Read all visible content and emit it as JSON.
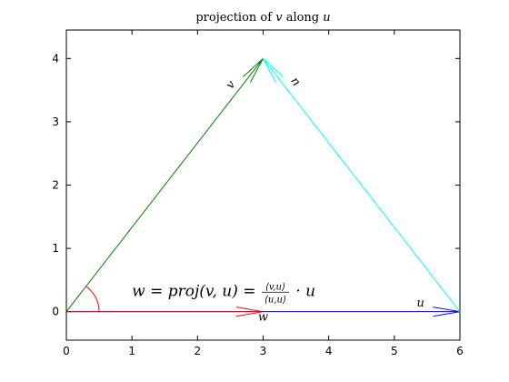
{
  "chart_data": {
    "type": "line",
    "title": {
      "parts": [
        {
          "text": "projection of ",
          "italic": false
        },
        {
          "text": "v",
          "italic": true
        },
        {
          "text": " along ",
          "italic": false
        },
        {
          "text": "u",
          "italic": true
        }
      ]
    },
    "xlim": [
      0,
      6
    ],
    "ylim": [
      -0.45,
      4.45
    ],
    "xticks": [
      0,
      1,
      2,
      3,
      4,
      5,
      6
    ],
    "yticks": [
      0,
      1,
      2,
      3,
      4
    ],
    "grid": false,
    "vectors": [
      {
        "name": "v",
        "from": [
          0,
          0
        ],
        "to": [
          3,
          4
        ],
        "color": "#008000",
        "label": "v",
        "label_at": [
          2.55,
          3.55
        ],
        "label_rotate": -53
      },
      {
        "name": "u",
        "from": [
          0,
          0
        ],
        "to": [
          6,
          0
        ],
        "color": "#0000ff",
        "label": "u",
        "label_at": [
          5.4,
          0.08
        ],
        "label_rotate": 0
      },
      {
        "name": "w",
        "from": [
          0,
          0
        ],
        "to": [
          3,
          0
        ],
        "color": "#ff0000",
        "label": "w",
        "label_at": [
          3.0,
          -0.14
        ],
        "label_rotate": 0
      },
      {
        "name": "n",
        "from": [
          6,
          0
        ],
        "to": [
          3,
          4
        ],
        "color": "#00ffff",
        "label": "n",
        "label_at": [
          3.45,
          3.6
        ],
        "label_rotate": 53
      }
    ],
    "angle_arc": {
      "center": [
        0,
        0
      ],
      "radius": 0.5,
      "from_deg": 0,
      "to_deg": 53.13,
      "color": "#ff0000"
    },
    "annotation": {
      "at": [
        1.0,
        0.25
      ],
      "lhs": "w = proj(v, u) = ",
      "numerator": "⟨v,u⟩",
      "denominator": "⟨u,u⟩",
      "rhs": " · u"
    }
  }
}
